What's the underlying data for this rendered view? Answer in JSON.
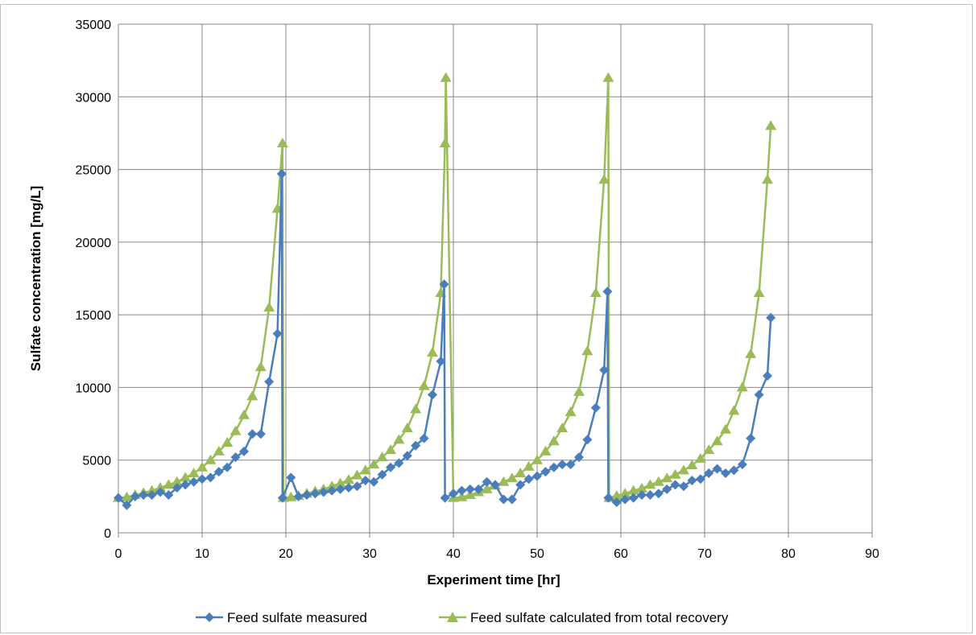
{
  "chart_data": {
    "type": "line",
    "title": "",
    "xlabel": "Experiment time [hr]",
    "ylabel": "Sulfate concentration [mg/L]",
    "xlim": [
      0,
      90
    ],
    "ylim": [
      0,
      35000
    ],
    "xticks": [
      0,
      10,
      20,
      30,
      40,
      50,
      60,
      70,
      80,
      90
    ],
    "yticks": [
      0,
      5000,
      10000,
      15000,
      20000,
      25000,
      30000,
      35000
    ],
    "grid": true,
    "legend_position": "bottom",
    "series": [
      {
        "name": "Feed sulfate measured",
        "color": "#4A7EBB",
        "marker": "diamond",
        "x": [
          0,
          1,
          2,
          3,
          4,
          5,
          6,
          7,
          8,
          9,
          10,
          11,
          12,
          13,
          14,
          15,
          16,
          17,
          18,
          19,
          19.5,
          19.6,
          20.6,
          21.5,
          22.5,
          23.5,
          24.5,
          25.5,
          26.5,
          27.5,
          28.5,
          29.5,
          30.5,
          31.5,
          32.5,
          33.5,
          34.5,
          35.5,
          36.5,
          37.5,
          38.5,
          38.9,
          39.0,
          40.0,
          41.0,
          42.0,
          43.0,
          44.0,
          45.0,
          46.0,
          47.0,
          48.0,
          49.0,
          50.0,
          51.0,
          52.0,
          53.0,
          54.0,
          55.0,
          56.0,
          57.0,
          58.0,
          58.4,
          58.5,
          59.5,
          60.5,
          61.5,
          62.5,
          63.5,
          64.5,
          65.5,
          66.5,
          67.5,
          68.5,
          69.5,
          70.5,
          71.5,
          72.5,
          73.5,
          74.5,
          75.5,
          76.5,
          77.5,
          77.9
        ],
        "y": [
          2400,
          1900,
          2500,
          2600,
          2600,
          2800,
          2600,
          3100,
          3300,
          3500,
          3700,
          3800,
          4200,
          4500,
          5200,
          5600,
          6800,
          6800,
          10400,
          13700,
          24700,
          2400,
          3800,
          2500,
          2600,
          2700,
          2800,
          2900,
          3000,
          3100,
          3200,
          3600,
          3500,
          4000,
          4500,
          4800,
          5300,
          6000,
          6500,
          9500,
          11800,
          17100,
          2400,
          2700,
          2900,
          3000,
          3000,
          3500,
          3300,
          2300,
          2300,
          3300,
          3700,
          3900,
          4200,
          4500,
          4700,
          4700,
          5200,
          6400,
          8600,
          11200,
          16600,
          2400,
          2100,
          2300,
          2400,
          2600,
          2600,
          2700,
          3000,
          3300,
          3200,
          3600,
          3700,
          4100,
          4400,
          4100,
          4300,
          4700,
          6500,
          9500,
          10800,
          14800
        ]
      },
      {
        "name": "Feed sulfate calculated from total recovery",
        "color": "#9BBB59",
        "marker": "triangle",
        "x": [
          0,
          1,
          2,
          3,
          4,
          5,
          6,
          7,
          8,
          9,
          10,
          11,
          12,
          13,
          14,
          15,
          16,
          17,
          18,
          19,
          19.6,
          19.7,
          20.6,
          21.5,
          22.5,
          23.5,
          24.5,
          25.5,
          26.5,
          27.5,
          28.5,
          29.5,
          30.5,
          31.5,
          32.5,
          33.5,
          34.5,
          35.5,
          36.5,
          37.5,
          38.5,
          39.0,
          39.1,
          40.0,
          41.0,
          42.0,
          43.0,
          44.0,
          45.0,
          46.0,
          47.0,
          48.0,
          49.0,
          50.0,
          51.0,
          52.0,
          53.0,
          54.0,
          55.0,
          56.0,
          57.0,
          58.0,
          58.5,
          58.6,
          59.5,
          60.5,
          61.5,
          62.5,
          63.5,
          64.5,
          65.5,
          66.5,
          67.5,
          68.5,
          69.5,
          70.5,
          71.5,
          72.5,
          73.5,
          74.5,
          75.5,
          76.5,
          77.5,
          77.9
        ],
        "y": [
          2400,
          2450,
          2600,
          2750,
          2900,
          3100,
          3300,
          3500,
          3800,
          4100,
          4500,
          5000,
          5600,
          6200,
          7000,
          8100,
          9400,
          11400,
          15500,
          22300,
          26800,
          2400,
          2450,
          2550,
          2700,
          2850,
          3000,
          3200,
          3400,
          3650,
          3950,
          4300,
          4700,
          5200,
          5700,
          6400,
          7200,
          8500,
          10100,
          12400,
          16500,
          26800,
          31300,
          2400,
          2450,
          2600,
          2800,
          3000,
          3250,
          3500,
          3750,
          4100,
          4550,
          5000,
          5600,
          6300,
          7200,
          8300,
          9700,
          12500,
          16500,
          24300,
          31300,
          2400,
          2550,
          2700,
          2900,
          3050,
          3300,
          3500,
          3750,
          4000,
          4300,
          4650,
          5100,
          5700,
          6300,
          7100,
          8400,
          10000,
          12300,
          16500,
          24300,
          28000
        ]
      }
    ]
  }
}
